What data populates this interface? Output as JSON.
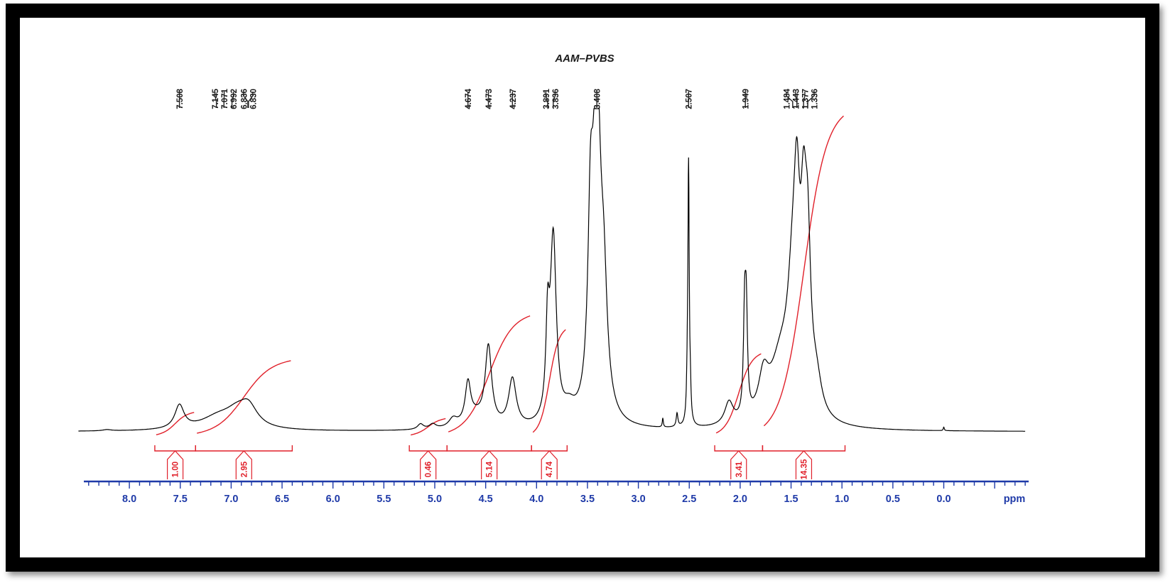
{
  "chart_data": {
    "type": "line",
    "title": "AAM–PVBS",
    "xlabel": "ppm",
    "x_axis_unit_label": "ppm",
    "xlim": [
      8.5,
      -0.8
    ],
    "x_reversed": true,
    "ticks": [
      "8.0",
      "7.5",
      "7.0",
      "6.5",
      "6.0",
      "5.5",
      "5.0",
      "4.5",
      "4.0",
      "3.5",
      "3.0",
      "2.5",
      "2.0",
      "1.5",
      "1.0",
      "0.5",
      "0.0"
    ],
    "peak_labels": [
      "7.508",
      "7.145",
      "7.071",
      "6.992",
      "6.836",
      "6.830",
      "4.674",
      "4.473",
      "4.237",
      "3.891",
      "3.836",
      "3.408",
      "2.507",
      "1.949",
      "1.484",
      "1.443",
      "1.377",
      "1.336"
    ],
    "integrals": [
      {
        "from": 7.75,
        "to": 7.35,
        "value": "1.00"
      },
      {
        "from": 7.35,
        "to": 6.4,
        "value": "2.95"
      },
      {
        "from": 5.25,
        "to": 4.88,
        "value": "0.46"
      },
      {
        "from": 4.88,
        "to": 4.05,
        "value": "5.14"
      },
      {
        "from": 4.05,
        "to": 3.7,
        "value": "4.74"
      },
      {
        "from": 2.25,
        "to": 1.78,
        "value": "3.41"
      },
      {
        "from": 1.78,
        "to": 0.97,
        "value": "14.35"
      }
    ],
    "peaks": [
      {
        "x": 8.22,
        "h": 0.004,
        "w": 0.05
      },
      {
        "x": 7.508,
        "h": 0.078,
        "w": 0.055
      },
      {
        "x": 7.12,
        "h": 0.045,
        "w": 0.22
      },
      {
        "x": 6.95,
        "h": 0.035,
        "w": 0.12
      },
      {
        "x": 6.833,
        "h": 0.072,
        "w": 0.11
      },
      {
        "x": 5.14,
        "h": 0.018,
        "w": 0.035
      },
      {
        "x": 5.02,
        "h": 0.016,
        "w": 0.04
      },
      {
        "x": 4.82,
        "h": 0.028,
        "w": 0.05
      },
      {
        "x": 4.674,
        "h": 0.13,
        "w": 0.032
      },
      {
        "x": 4.6,
        "h": 0.04,
        "w": 0.12
      },
      {
        "x": 4.473,
        "h": 0.26,
        "w": 0.038
      },
      {
        "x": 4.237,
        "h": 0.16,
        "w": 0.045
      },
      {
        "x": 3.891,
        "h": 0.28,
        "w": 0.02
      },
      {
        "x": 3.836,
        "h": 0.62,
        "w": 0.036
      },
      {
        "x": 3.68,
        "h": 0.045,
        "w": 0.07
      },
      {
        "x": 3.47,
        "h": 0.55,
        "w": 0.03
      },
      {
        "x": 3.408,
        "h": 1.1,
        "w": 0.045
      },
      {
        "x": 3.34,
        "h": 0.35,
        "w": 0.04
      },
      {
        "x": 2.76,
        "h": 0.03,
        "w": 0.006
      },
      {
        "x": 2.62,
        "h": 0.045,
        "w": 0.01
      },
      {
        "x": 2.52,
        "h": 0.08,
        "w": 0.008
      },
      {
        "x": 2.507,
        "h": 0.87,
        "w": 0.008
      },
      {
        "x": 2.49,
        "h": 0.08,
        "w": 0.008
      },
      {
        "x": 2.11,
        "h": 0.075,
        "w": 0.05
      },
      {
        "x": 1.956,
        "h": 0.32,
        "w": 0.014
      },
      {
        "x": 1.94,
        "h": 0.32,
        "w": 0.014
      },
      {
        "x": 1.77,
        "h": 0.13,
        "w": 0.06
      },
      {
        "x": 1.6,
        "h": 0.2,
        "w": 0.13
      },
      {
        "x": 1.484,
        "h": 0.35,
        "w": 0.06
      },
      {
        "x": 1.443,
        "h": 0.5,
        "w": 0.035
      },
      {
        "x": 1.377,
        "h": 0.5,
        "w": 0.035
      },
      {
        "x": 1.336,
        "h": 0.45,
        "w": 0.035
      },
      {
        "x": 1.25,
        "h": 0.1,
        "w": 0.06
      },
      {
        "x": 0.0,
        "h": 0.012,
        "w": 0.006
      }
    ],
    "colors": {
      "spectrum": "#000000",
      "integral": "#e0202a",
      "axis": "#1f3aa8"
    }
  }
}
